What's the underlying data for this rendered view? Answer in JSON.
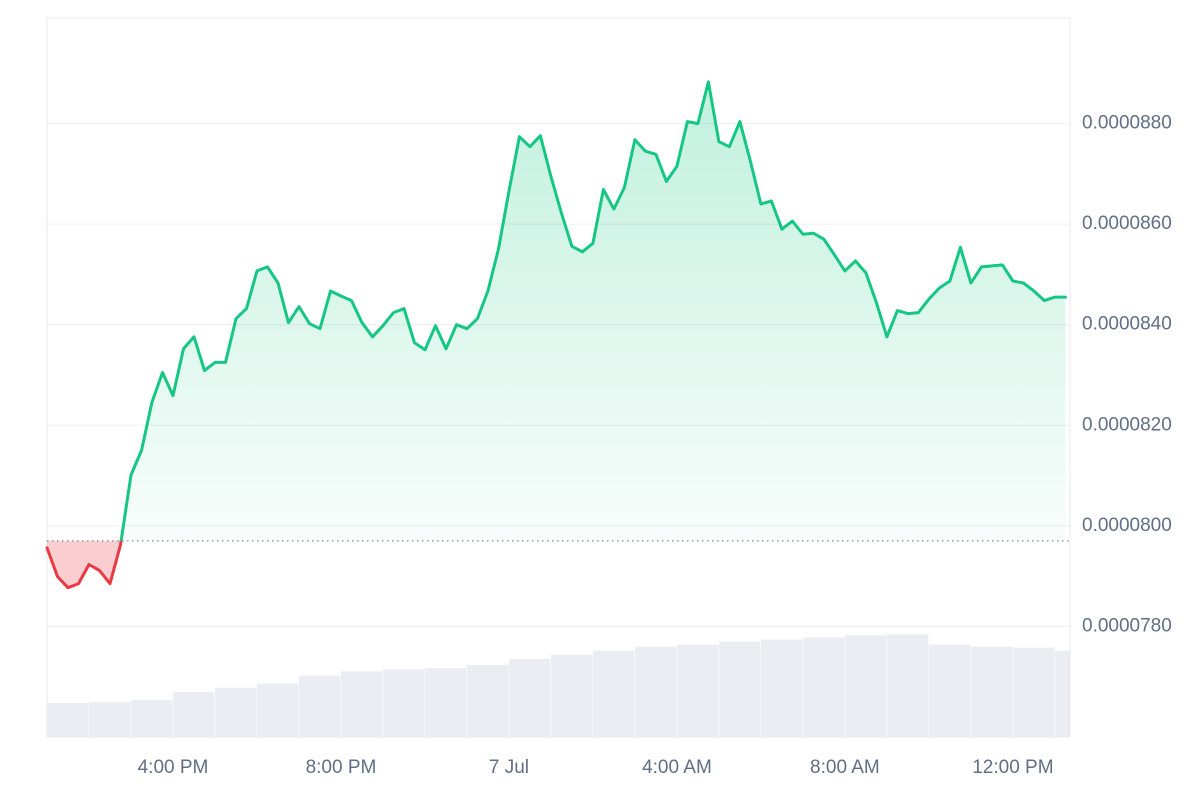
{
  "chart_data": {
    "type": "baseline-area",
    "x": [
      0,
      0.25,
      0.5,
      0.75,
      1,
      1.25,
      1.5,
      1.75,
      2,
      2.25,
      2.5,
      2.75,
      3,
      3.25,
      3.5,
      3.75,
      4,
      4.25,
      4.5,
      4.75,
      5,
      5.25,
      5.5,
      5.75,
      6,
      6.25,
      6.5,
      6.75,
      7,
      7.25,
      7.5,
      7.75,
      8,
      8.25,
      8.5,
      8.75,
      9,
      9.25,
      9.5,
      9.75,
      10,
      10.25,
      10.5,
      10.75,
      11,
      11.25,
      11.5,
      11.75,
      12,
      12.25,
      12.5,
      12.75,
      13,
      13.25,
      13.5,
      13.75,
      14,
      14.25,
      14.5,
      14.75,
      15,
      15.25,
      15.5,
      15.75,
      16,
      16.25,
      16.5,
      16.75,
      17,
      17.25,
      17.5,
      17.75,
      18,
      18.25,
      18.5,
      18.75,
      19,
      19.25,
      19.5,
      19.75,
      20,
      20.25,
      20.5,
      20.75,
      21,
      21.25,
      21.5,
      21.75,
      22,
      22.25,
      22.5,
      22.75,
      23,
      23.25,
      23.5,
      23.75,
      24,
      24.25
    ],
    "series": [
      {
        "values": [
          7.956e-05,
          7.899e-05,
          7.877e-05,
          7.885e-05,
          7.923e-05,
          7.911e-05,
          7.885e-05,
          7.962e-05,
          8.101e-05,
          8.15e-05,
          8.246e-05,
          8.305e-05,
          8.259e-05,
          8.352e-05,
          8.376e-05,
          8.309e-05,
          8.325e-05,
          8.325e-05,
          8.412e-05,
          8.432e-05,
          8.507e-05,
          8.515e-05,
          8.483e-05,
          8.404e-05,
          8.436e-05,
          8.402e-05,
          8.392e-05,
          8.467e-05,
          8.457e-05,
          8.448e-05,
          8.404e-05,
          8.376e-05,
          8.398e-05,
          8.424e-05,
          8.432e-05,
          8.364e-05,
          8.35e-05,
          8.398e-05,
          8.352e-05,
          8.4e-05,
          8.392e-05,
          8.412e-05,
          8.467e-05,
          8.55e-05,
          8.665e-05,
          8.774e-05,
          8.754e-05,
          8.776e-05,
          8.695e-05,
          8.622e-05,
          8.556e-05,
          8.545e-05,
          8.562e-05,
          8.669e-05,
          8.63e-05,
          8.673e-05,
          8.768e-05,
          8.745e-05,
          8.739e-05,
          8.685e-05,
          8.715e-05,
          8.804e-05,
          8.8e-05,
          8.883e-05,
          8.764e-05,
          8.754e-05,
          8.804e-05,
          8.725e-05,
          8.64e-05,
          8.646e-05,
          8.59e-05,
          8.606e-05,
          8.58e-05,
          8.582e-05,
          8.57e-05,
          8.539e-05,
          8.507e-05,
          8.527e-05,
          8.503e-05,
          8.444e-05,
          8.376e-05,
          8.428e-05,
          8.422e-05,
          8.424e-05,
          8.451e-05,
          8.473e-05,
          8.487e-05,
          8.554e-05,
          8.483e-05,
          8.515e-05,
          8.517e-05,
          8.519e-05,
          8.487e-05,
          8.483e-05,
          8.467e-05,
          8.448e-05,
          8.455e-05,
          8.455e-05
        ],
        "color": "#16c784",
        "negative_color": "#ea3943"
      },
      {
        "type": "bar",
        "axis": "y2",
        "color": "#eaedf1",
        "x": [
          0,
          1,
          2,
          3,
          4,
          5,
          6,
          7,
          8,
          9,
          10,
          11,
          12,
          13,
          14,
          15,
          16,
          17,
          18,
          19,
          20,
          21,
          22,
          23,
          24
        ],
        "values": [
          33,
          34,
          36,
          44,
          48,
          52,
          60,
          64,
          66,
          67,
          70,
          76,
          80,
          84,
          88,
          90,
          93,
          95,
          97,
          99,
          100,
          90,
          88,
          87,
          84
        ]
      }
    ],
    "baseline": 7.97e-05,
    "xlim": [
      0,
      24.36
    ],
    "xticks": [
      {
        "value": 3,
        "label": "4:00 PM"
      },
      {
        "value": 7,
        "label": "8:00 PM"
      },
      {
        "value": 11,
        "label": "7 Jul"
      },
      {
        "value": 15,
        "label": "4:00 AM"
      },
      {
        "value": 19,
        "label": "8:00 AM"
      },
      {
        "value": 23,
        "label": "12:00 PM"
      }
    ],
    "ylim": [
      7.58e-05,
      9.01e-05
    ],
    "yticks": [
      {
        "value": 7.8e-05,
        "label": "0.0000780"
      },
      {
        "value": 8e-05,
        "label": "0.0000800"
      },
      {
        "value": 8.2e-05,
        "label": "0.0000820"
      },
      {
        "value": 8.4e-05,
        "label": "0.0000840"
      },
      {
        "value": 8.6e-05,
        "label": "0.0000860"
      },
      {
        "value": 8.8e-05,
        "label": "0.0000880"
      }
    ],
    "y2lim": [
      0,
      700
    ],
    "grid": true
  }
}
